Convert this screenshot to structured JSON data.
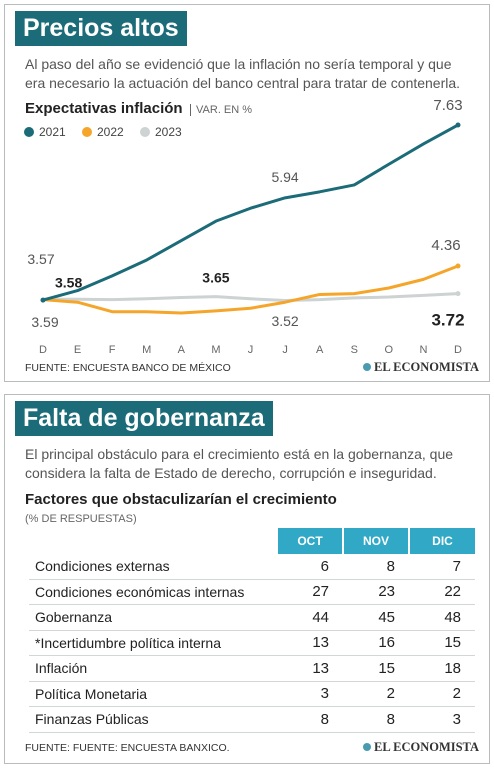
{
  "chart_data": {
    "type": "line",
    "title": "Precios altos",
    "subtitle": "Al paso del año se evidenció que la inflación no sería temporal y que era necesario la actuación del banco central para tratar de contenerla.",
    "chart_title": "Expectativas inflación",
    "unit_label": "VAR. EN %",
    "categories": [
      "D",
      "E",
      "F",
      "M",
      "A",
      "M",
      "J",
      "J",
      "A",
      "S",
      "O",
      "N",
      "D"
    ],
    "series": [
      {
        "name": "2021",
        "color": "#1b6b79",
        "values": [
          3.57,
          3.79,
          4.13,
          4.5,
          4.95,
          5.4,
          5.7,
          5.94,
          6.08,
          6.24,
          6.72,
          7.19,
          7.63
        ]
      },
      {
        "name": "2022",
        "color": "#f5a52a",
        "values": [
          3.58,
          3.52,
          3.3,
          3.3,
          3.27,
          3.32,
          3.38,
          3.52,
          3.7,
          3.72,
          3.85,
          4.05,
          4.36
        ]
      },
      {
        "name": "2023",
        "color": "#cdd2d2",
        "values": [
          3.59,
          3.59,
          3.58,
          3.6,
          3.63,
          3.65,
          3.6,
          3.56,
          3.58,
          3.62,
          3.64,
          3.68,
          3.72
        ]
      }
    ],
    "source": "FUENTE: ENCUESTA BANCO DE MÉXICO",
    "brand": "EL ECONOMISTA"
  },
  "table_section": {
    "title": "Falta de gobernanza",
    "subtitle": "El principal obstáculo para el crecimiento está en la gobernanza, que considera la falta de Estado de derecho, corrupción e inseguridad.",
    "table_title": "Factores que obstaculizarían el crecimiento",
    "unit_label": "(% DE RESPUESTAS)",
    "columns": [
      "OCT",
      "NOV",
      "DIC"
    ],
    "rows": [
      [
        "Condiciones externas",
        6,
        8,
        7
      ],
      [
        "Condiciones económicas internas",
        27,
        23,
        22
      ],
      [
        "Gobernanza",
        44,
        45,
        48
      ],
      [
        "*Incertidumbre política interna",
        13,
        16,
        15
      ],
      [
        "Inflación",
        13,
        15,
        18
      ],
      [
        "Política Monetaria",
        3,
        2,
        2
      ],
      [
        "Finanzas Públicas",
        8,
        8,
        3
      ]
    ],
    "source": "FUENTE: FUENTE: ENCUESTA BANXICO.",
    "brand": "EL ECONOMISTA"
  }
}
